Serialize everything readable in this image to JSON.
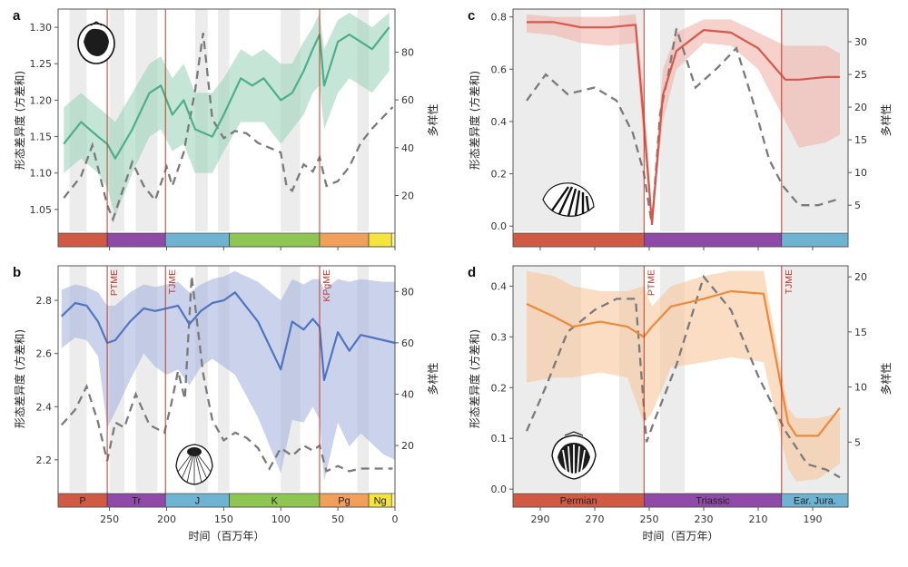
{
  "chart_data": [
    {
      "panel": "a",
      "type": "line",
      "color": "#4caf8a",
      "band_color": "#9fd3bd",
      "time_axis": "reverse",
      "xlim": [
        295,
        0
      ],
      "xticks": [
        250,
        200,
        150,
        100,
        50,
        0
      ],
      "ylim": [
        1.02,
        1.325
      ],
      "yticks": [
        1.05,
        1.1,
        1.15,
        1.2,
        1.25,
        1.3
      ],
      "y2lim": [
        5,
        98
      ],
      "y2ticks": [
        20,
        40,
        60,
        80
      ],
      "ylabel": "形态差异度 (方差和)",
      "y2label": "多样性",
      "xlabel": "",
      "events": [
        {
          "x": 252,
          "label": "PTME"
        },
        {
          "x": 201,
          "label": "TJME"
        },
        {
          "x": 66,
          "label": "KPgME"
        }
      ],
      "show_event_labels": false,
      "shading": [
        [
          285,
          270
        ],
        [
          250,
          237
        ],
        [
          227,
          208
        ],
        [
          175,
          164
        ],
        [
          155,
          145
        ],
        [
          100,
          83
        ],
        [
          33,
          23
        ]
      ],
      "periods": [
        {
          "from": 298,
          "to": 252,
          "label": "P",
          "color": "#d15a45"
        },
        {
          "from": 252,
          "to": 201,
          "label": "Tr",
          "color": "#8e4aa6"
        },
        {
          "from": 201,
          "to": 145,
          "label": "J",
          "color": "#6fb3d2"
        },
        {
          "from": 145,
          "to": 66,
          "label": "K",
          "color": "#8fc553"
        },
        {
          "from": 66,
          "to": 23,
          "label": "Pg",
          "color": "#f0a05a"
        },
        {
          "from": 23,
          "to": 3,
          "label": "Ng",
          "color": "#f5e33e"
        },
        {
          "from": 3,
          "to": 0,
          "label": "Q",
          "color": "#f9f4a8"
        }
      ],
      "show_period_labels": false,
      "disparity": {
        "x": [
          290,
          275,
          260,
          252,
          245,
          230,
          215,
          205,
          195,
          185,
          175,
          160,
          150,
          135,
          125,
          115,
          100,
          90,
          80,
          72,
          66,
          62,
          50,
          40,
          30,
          20,
          5
        ],
        "y": [
          1.14,
          1.17,
          1.15,
          1.14,
          1.12,
          1.16,
          1.21,
          1.22,
          1.18,
          1.2,
          1.16,
          1.15,
          1.18,
          1.23,
          1.22,
          1.23,
          1.2,
          1.21,
          1.24,
          1.27,
          1.29,
          1.22,
          1.28,
          1.29,
          1.28,
          1.27,
          1.3
        ],
        "lower": [
          1.1,
          1.12,
          1.1,
          1.08,
          1.04,
          1.1,
          1.15,
          1.16,
          1.13,
          1.14,
          1.1,
          1.1,
          1.13,
          1.17,
          1.17,
          1.17,
          1.14,
          1.16,
          1.18,
          1.21,
          1.22,
          1.16,
          1.21,
          1.23,
          1.22,
          1.21,
          1.24
        ],
        "upper": [
          1.19,
          1.21,
          1.19,
          1.18,
          1.17,
          1.21,
          1.25,
          1.26,
          1.23,
          1.25,
          1.21,
          1.21,
          1.23,
          1.27,
          1.26,
          1.27,
          1.25,
          1.25,
          1.28,
          1.3,
          1.32,
          1.27,
          1.31,
          1.32,
          1.31,
          1.3,
          1.32
        ]
      },
      "diversity": {
        "x": [
          290,
          275,
          265,
          252,
          247,
          240,
          230,
          220,
          210,
          200,
          195,
          185,
          175,
          168,
          160,
          150,
          140,
          130,
          120,
          110,
          100,
          95,
          90,
          80,
          72,
          66,
          60,
          50,
          40,
          30,
          20,
          10,
          2
        ],
        "y": [
          19,
          28,
          41,
          16,
          10,
          20,
          34,
          24,
          18,
          32,
          24,
          38,
          64,
          88,
          52,
          44,
          47,
          46,
          42,
          40,
          38,
          24,
          22,
          33,
          30,
          36,
          24,
          26,
          32,
          42,
          48,
          53,
          57
        ]
      }
    },
    {
      "panel": "b",
      "type": "line",
      "color": "#4f74c2",
      "band_color": "#a9b6e0",
      "time_axis": "reverse",
      "xlim": [
        295,
        0
      ],
      "xticks": [
        250,
        200,
        150,
        100,
        50,
        0
      ],
      "xticklabels": [
        "250",
        "200",
        "150",
        "100",
        "50",
        "0"
      ],
      "ylim": [
        2.08,
        2.93
      ],
      "yticks": [
        2.2,
        2.4,
        2.6,
        2.8
      ],
      "y2lim": [
        2,
        90
      ],
      "y2ticks": [
        20,
        40,
        60,
        80
      ],
      "ylabel": "形态差异度 (方差和)",
      "y2label": "多样性",
      "xlabel": "时间（百万年）",
      "events": [
        {
          "x": 252,
          "label": "PTME"
        },
        {
          "x": 201,
          "label": "TJME"
        },
        {
          "x": 66,
          "label": "KPgME"
        }
      ],
      "show_event_labels": true,
      "shading": [
        [
          285,
          270
        ],
        [
          250,
          237
        ],
        [
          227,
          208
        ],
        [
          175,
          164
        ],
        [
          155,
          145
        ],
        [
          100,
          83
        ],
        [
          33,
          23
        ]
      ],
      "periods": [
        {
          "from": 298,
          "to": 252,
          "label": "P",
          "color": "#d15a45"
        },
        {
          "from": 252,
          "to": 201,
          "label": "Tr",
          "color": "#8e4aa6"
        },
        {
          "from": 201,
          "to": 145,
          "label": "J",
          "color": "#6fb3d2"
        },
        {
          "from": 145,
          "to": 66,
          "label": "K",
          "color": "#8fc553"
        },
        {
          "from": 66,
          "to": 23,
          "label": "Pg",
          "color": "#f0a05a"
        },
        {
          "from": 23,
          "to": 3,
          "label": "Ng",
          "color": "#f5e33e"
        },
        {
          "from": 3,
          "to": 0,
          "label": "",
          "color": "#f9f4a8"
        }
      ],
      "show_period_labels": true,
      "disparity": {
        "x": [
          292,
          280,
          270,
          260,
          252,
          245,
          232,
          220,
          210,
          200,
          190,
          180,
          170,
          160,
          150,
          140,
          120,
          100,
          90,
          80,
          72,
          66,
          62,
          50,
          40,
          30,
          10,
          0
        ],
        "y": [
          2.74,
          2.79,
          2.78,
          2.72,
          2.64,
          2.65,
          2.72,
          2.77,
          2.76,
          2.77,
          2.78,
          2.71,
          2.76,
          2.79,
          2.8,
          2.83,
          2.72,
          2.54,
          2.72,
          2.69,
          2.73,
          2.7,
          2.5,
          2.68,
          2.61,
          2.67,
          2.65,
          2.64
        ],
        "lower": [
          2.62,
          2.66,
          2.65,
          2.59,
          2.32,
          2.38,
          2.5,
          2.6,
          2.55,
          2.52,
          2.54,
          2.48,
          2.55,
          2.58,
          2.55,
          2.52,
          2.36,
          2.15,
          2.35,
          2.34,
          2.4,
          2.35,
          2.12,
          2.34,
          2.25,
          2.3,
          2.22,
          2.2
        ],
        "upper": [
          2.84,
          2.86,
          2.85,
          2.83,
          2.78,
          2.78,
          2.83,
          2.86,
          2.85,
          2.86,
          2.87,
          2.83,
          2.86,
          2.88,
          2.89,
          2.91,
          2.87,
          2.8,
          2.88,
          2.86,
          2.88,
          2.88,
          2.84,
          2.88,
          2.87,
          2.88,
          2.87,
          2.87
        ]
      },
      "diversity": {
        "x": [
          292,
          280,
          270,
          260,
          252,
          245,
          237,
          227,
          215,
          202,
          196,
          190,
          184,
          178,
          168,
          160,
          150,
          140,
          130,
          120,
          110,
          100,
          90,
          80,
          72,
          66,
          60,
          50,
          40,
          30,
          20,
          10,
          2
        ],
        "y": [
          28,
          34,
          43,
          29,
          14,
          29,
          27,
          40,
          28,
          25,
          36,
          49,
          38,
          86,
          48,
          30,
          22,
          25,
          23,
          19,
          11,
          19,
          16,
          20,
          18,
          20,
          10,
          12,
          10,
          11,
          11,
          11,
          11
        ]
      }
    },
    {
      "panel": "c",
      "type": "line",
      "color": "#d9574a",
      "band_color": "#f2b2a8",
      "time_axis": "reverse",
      "xlim": [
        300,
        177
      ],
      "xticks": [
        290,
        270,
        250,
        230,
        210,
        190
      ],
      "ylim": [
        -0.02,
        0.83
      ],
      "yticks": [
        0.0,
        0.2,
        0.4,
        0.6,
        0.8
      ],
      "y2lim": [
        1,
        35
      ],
      "y2ticks": [
        5,
        10,
        15,
        20,
        25,
        30
      ],
      "ylabel": "形态差异度 (方差和)",
      "y2label": "多样性",
      "xlabel": "",
      "events": [
        {
          "x": 251.9,
          "label": "PTME"
        },
        {
          "x": 201.4,
          "label": "TJME"
        }
      ],
      "show_event_labels": false,
      "shading": [
        [
          300,
          275
        ],
        [
          261,
          252
        ],
        [
          246,
          237
        ],
        [
          201.4,
          177
        ]
      ],
      "periods": [
        {
          "from": 300,
          "to": 251.9,
          "label": "Permian",
          "color": "#d15a45"
        },
        {
          "from": 251.9,
          "to": 201.4,
          "label": "Triassic",
          "color": "#8e4aa6"
        },
        {
          "from": 201.4,
          "to": 177,
          "label": "Ear. Jura.",
          "color": "#6fb3d2"
        }
      ],
      "show_period_labels": false,
      "disparity": {
        "x": [
          295,
          285,
          275,
          265,
          255,
          252,
          249,
          245,
          240,
          230,
          220,
          210,
          200,
          195,
          185,
          180
        ],
        "y": [
          0.78,
          0.78,
          0.76,
          0.76,
          0.77,
          0.4,
          0.01,
          0.5,
          0.67,
          0.75,
          0.74,
          0.68,
          0.56,
          0.56,
          0.57,
          0.57
        ],
        "lower": [
          0.74,
          0.73,
          0.7,
          0.69,
          0.7,
          0.3,
          0.0,
          0.4,
          0.6,
          0.7,
          0.69,
          0.6,
          0.4,
          0.3,
          0.32,
          0.35
        ],
        "upper": [
          0.81,
          0.8,
          0.8,
          0.8,
          0.81,
          0.52,
          0.05,
          0.6,
          0.74,
          0.79,
          0.79,
          0.74,
          0.69,
          0.69,
          0.69,
          0.66
        ]
      },
      "diversity": {
        "x": [
          295,
          288,
          280,
          270,
          262,
          256,
          252,
          249,
          246,
          243,
          240,
          233,
          225,
          218,
          212,
          206,
          201,
          195,
          188,
          180
        ],
        "y": [
          21,
          25,
          22,
          23,
          21,
          16,
          10,
          2,
          19,
          25,
          32,
          23,
          26,
          29,
          21,
          12,
          8,
          5,
          5,
          6
        ]
      }
    },
    {
      "panel": "d",
      "type": "line",
      "color": "#ec8a3a",
      "band_color": "#f6c79b",
      "time_axis": "reverse",
      "xlim": [
        300,
        177
      ],
      "xticks": [
        290,
        270,
        250,
        230,
        210,
        190
      ],
      "xticklabels": [
        "290",
        "270",
        "250",
        "230",
        "210",
        "190"
      ],
      "ylim": [
        -0.005,
        0.44
      ],
      "yticks": [
        0.0,
        0.1,
        0.2,
        0.3,
        0.4
      ],
      "y2lim": [
        0.5,
        21
      ],
      "y2ticks": [
        5,
        10,
        15,
        20
      ],
      "ylabel": "形态差异度 (方差和)",
      "y2label": "多样性",
      "xlabel": "时间（百万年）",
      "events": [
        {
          "x": 251.9,
          "label": "PTME"
        },
        {
          "x": 201.4,
          "label": "TJME"
        }
      ],
      "show_event_labels": true,
      "shading": [
        [
          300,
          275
        ],
        [
          261,
          252
        ],
        [
          246,
          237
        ],
        [
          201.4,
          177
        ]
      ],
      "periods": [
        {
          "from": 300,
          "to": 251.9,
          "label": "Permian",
          "color": "#d15a45"
        },
        {
          "from": 251.9,
          "to": 201.4,
          "label": "Triassic",
          "color": "#8e4aa6"
        },
        {
          "from": 201.4,
          "to": 177,
          "label": "Ear. Jura.",
          "color": "#6fb3d2"
        }
      ],
      "show_period_labels": true,
      "disparity": {
        "x": [
          295,
          285,
          278,
          268,
          258,
          252,
          249,
          242,
          230,
          220,
          208,
          199,
          196,
          188,
          180
        ],
        "y": [
          0.365,
          0.34,
          0.32,
          0.33,
          0.32,
          0.3,
          0.32,
          0.36,
          0.375,
          0.39,
          0.385,
          0.13,
          0.105,
          0.105,
          0.16
        ],
        "lower": [
          0.21,
          0.22,
          0.22,
          0.23,
          0.22,
          0.13,
          0.15,
          0.24,
          0.25,
          0.26,
          0.25,
          0.04,
          0.015,
          0.02,
          0.05
        ],
        "upper": [
          0.43,
          0.42,
          0.4,
          0.39,
          0.39,
          0.4,
          0.36,
          0.4,
          0.42,
          0.43,
          0.43,
          0.16,
          0.14,
          0.14,
          0.15
        ]
      },
      "diversity": {
        "x": [
          295,
          288,
          280,
          270,
          262,
          255,
          251,
          248,
          240,
          230,
          220,
          210,
          200,
          192,
          185,
          180
        ],
        "y": [
          6,
          10,
          15,
          17,
          18,
          18,
          5,
          7,
          12,
          20,
          17,
          11,
          6,
          3,
          2.5,
          1.8
        ]
      }
    }
  ]
}
